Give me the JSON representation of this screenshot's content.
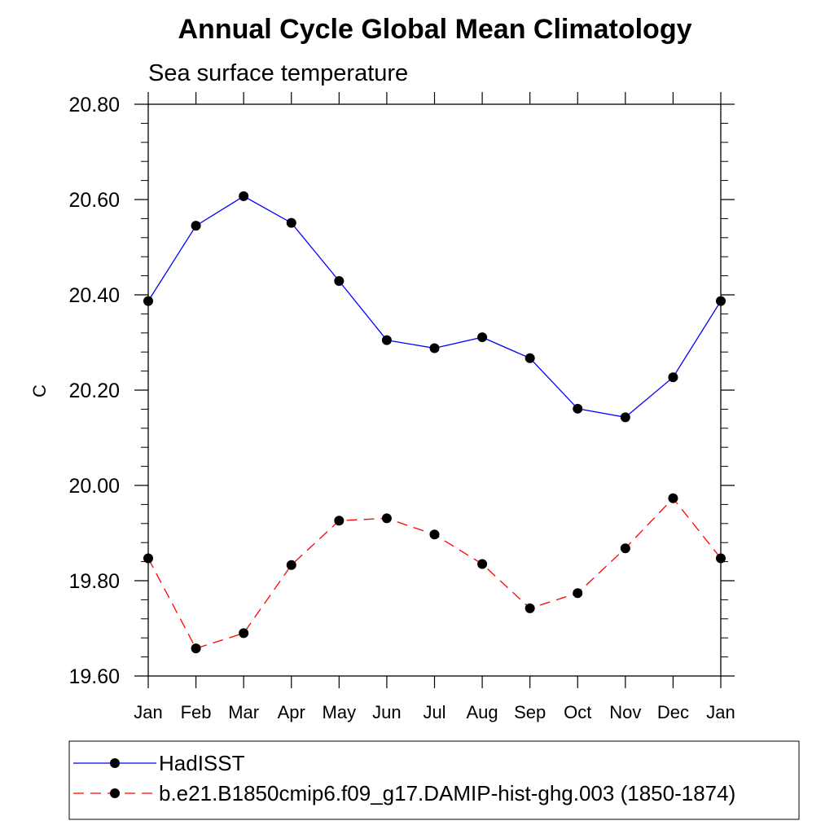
{
  "chart_data": {
    "type": "line",
    "title": "Annual Cycle Global Mean Climatology",
    "subtitle": "Sea surface temperature",
    "ylabel": "C",
    "xlabel": "",
    "categories": [
      "Jan",
      "Feb",
      "Mar",
      "Apr",
      "May",
      "Jun",
      "Jul",
      "Aug",
      "Sep",
      "Oct",
      "Nov",
      "Dec",
      "Jan"
    ],
    "ylim": [
      19.6,
      20.8
    ],
    "yticks": [
      "19.60",
      "19.80",
      "20.00",
      "20.20",
      "20.40",
      "20.60",
      "20.80"
    ],
    "grid": false,
    "legend_position": "bottom",
    "series": [
      {
        "name": "HadISST",
        "color": "#0000ff",
        "line_style": "solid",
        "marker": "filled-circle",
        "values": [
          20.387,
          20.545,
          20.607,
          20.551,
          20.429,
          20.305,
          20.288,
          20.311,
          20.267,
          20.161,
          20.143,
          20.227,
          20.387
        ]
      },
      {
        "name": "b.e21.B1850cmip6.f09_g17.DAMIP-hist-ghg.003 (1850-1874)",
        "color": "#ff0000",
        "line_style": "dashed",
        "marker": "filled-circle",
        "values": [
          19.847,
          19.658,
          19.69,
          19.833,
          19.926,
          19.931,
          19.897,
          19.835,
          19.742,
          19.774,
          19.868,
          19.973,
          19.847
        ]
      }
    ]
  }
}
